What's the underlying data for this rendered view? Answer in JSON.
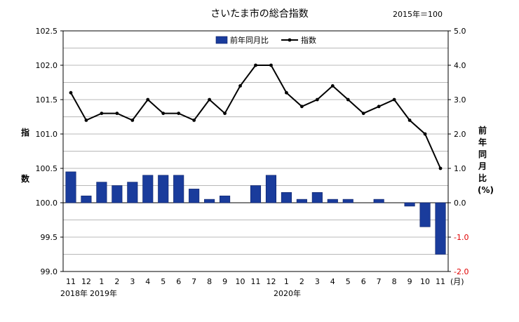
{
  "chart_data": {
    "type": "bar+line",
    "title": "さいたま市の総合指数",
    "base_note": "2015年＝100",
    "y_left": {
      "label": [
        "指",
        "数"
      ],
      "ylim": [
        99.0,
        102.5
      ],
      "ticks": [
        "102.5",
        "102.0",
        "101.5",
        "101.0",
        "100.5",
        "100.0",
        "99.5",
        "99.0"
      ]
    },
    "y_right": {
      "label": "前年同月比(%)",
      "ylim": [
        -2.0,
        5.0
      ],
      "ticks": [
        "5.0",
        "4.0",
        "3.0",
        "2.0",
        "1.0",
        "0.0",
        "-1.0",
        "-2.0"
      ],
      "negative_color": "#e00000"
    },
    "categories": [
      "11",
      "12",
      "1",
      "2",
      "3",
      "4",
      "5",
      "6",
      "7",
      "8",
      "9",
      "10",
      "11",
      "12",
      "1",
      "2",
      "3",
      "4",
      "5",
      "6",
      "7",
      "8",
      "9",
      "10",
      "11"
    ],
    "x_unit": "(月)",
    "year_labels": [
      "2018年",
      "2019年",
      "2020年"
    ],
    "series": [
      {
        "name": "前年同月比",
        "type": "bar",
        "axis": "right",
        "color": "#1a3c9c",
        "values": [
          0.9,
          0.2,
          0.6,
          0.5,
          0.6,
          0.8,
          0.8,
          0.8,
          0.4,
          0.1,
          0.2,
          0.0,
          0.5,
          0.8,
          0.3,
          0.1,
          0.3,
          0.1,
          0.1,
          0.0,
          0.1,
          0.0,
          -0.1,
          -0.7,
          -1.5
        ]
      },
      {
        "name": "指数",
        "type": "line",
        "axis": "left",
        "color": "#000000",
        "values": [
          101.6,
          101.2,
          101.3,
          101.3,
          101.2,
          101.5,
          101.3,
          101.3,
          101.2,
          101.5,
          101.3,
          101.7,
          102.0,
          102.0,
          101.6,
          101.4,
          101.5,
          101.7,
          101.5,
          101.3,
          101.4,
          101.5,
          101.2,
          101.0,
          100.5
        ]
      }
    ],
    "grid": true,
    "legend": "top-center"
  }
}
